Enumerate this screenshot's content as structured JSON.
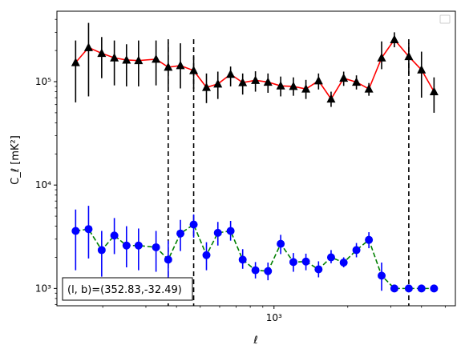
{
  "chart_data": {
    "type": "scatter",
    "xscale": "log",
    "yscale": "log",
    "xlabel": "ℓ",
    "ylabel": "C_ℓ  [mK²]",
    "xlim": [
      130,
      5500
    ],
    "ylim": [
      680,
      480000
    ],
    "x_tick_labels": [
      "10³"
    ],
    "y_tick_labels": [
      "10³",
      "10⁴",
      "10⁵"
    ],
    "annotation": "(l, b)=(352.83,-32.49)",
    "vlines": [
      370,
      470,
      3550
    ],
    "legend": "top-right (empty)",
    "series": [
      {
        "marker": "triangle",
        "marker_color": "#000000",
        "errorbar_color": "#000000",
        "line_color": "#ff0000",
        "line_style": "solid",
        "x": [
          155,
          175,
          198,
          223,
          250,
          280,
          330,
          370,
          415,
          470,
          530,
          590,
          665,
          745,
          840,
          945,
          1065,
          1200,
          1350,
          1520,
          1710,
          1925,
          2170,
          2440,
          2750,
          3100,
          3550,
          4000,
          4500
        ],
        "y": [
          153000,
          214000,
          188000,
          170000,
          162000,
          160000,
          165000,
          138000,
          143000,
          128000,
          88000,
          95000,
          118000,
          98000,
          103000,
          99000,
          91000,
          90000,
          85000,
          102000,
          68000,
          108000,
          99000,
          85000,
          170000,
          255000,
          175000,
          130000,
          80000
        ],
        "err_low": [
          63000,
          72000,
          108000,
          92000,
          90000,
          90000,
          92000,
          83000,
          86000,
          85000,
          62000,
          68000,
          90000,
          75000,
          80000,
          78000,
          72000,
          73000,
          68000,
          84000,
          57000,
          91000,
          84000,
          73000,
          132000,
          215000,
          118000,
          70000,
          50000
        ],
        "err_high": [
          250000,
          370000,
          270000,
          250000,
          230000,
          250000,
          250000,
          240000,
          235000,
          175000,
          120000,
          125000,
          140000,
          120000,
          126000,
          120000,
          112000,
          110000,
          104000,
          120000,
          80000,
          125000,
          115000,
          97000,
          245000,
          300000,
          235000,
          195000,
          110000
        ]
      },
      {
        "marker": "circle",
        "marker_color": "#0000ff",
        "errorbar_color": "#0000ff",
        "line_color": "#008000",
        "line_style": "dashed",
        "x": [
          155,
          175,
          198,
          223,
          250,
          280,
          330,
          370,
          415,
          470,
          530,
          590,
          665,
          745,
          840,
          945,
          1065,
          1200,
          1350,
          1520,
          1710,
          1925,
          2170,
          2440,
          2750,
          3100,
          3550,
          4000,
          4500
        ],
        "y": [
          3600,
          3750,
          2350,
          3250,
          2600,
          2600,
          2500,
          1900,
          3400,
          4150,
          2100,
          3450,
          3600,
          1900,
          1500,
          1470,
          2700,
          1800,
          1820,
          1530,
          2000,
          1780,
          2350,
          2950,
          1330,
          1000,
          1000,
          1000,
          1000
        ],
        "err_low": [
          1500,
          1950,
          1300,
          2150,
          1600,
          1500,
          1450,
          1200,
          2300,
          3100,
          1500,
          2600,
          2900,
          1550,
          1250,
          1200,
          2150,
          1450,
          1500,
          1280,
          1750,
          1600,
          2000,
          2450,
          950,
          1000,
          1000,
          1000,
          1000
        ],
        "err_high": [
          5800,
          6300,
          3600,
          4800,
          4000,
          3800,
          3600,
          2900,
          4600,
          5200,
          2800,
          4400,
          4500,
          2400,
          1800,
          1780,
          3300,
          2200,
          2170,
          1830,
          2350,
          2000,
          2750,
          3500,
          1780,
          1000,
          1000,
          1000,
          1000
        ]
      }
    ]
  }
}
